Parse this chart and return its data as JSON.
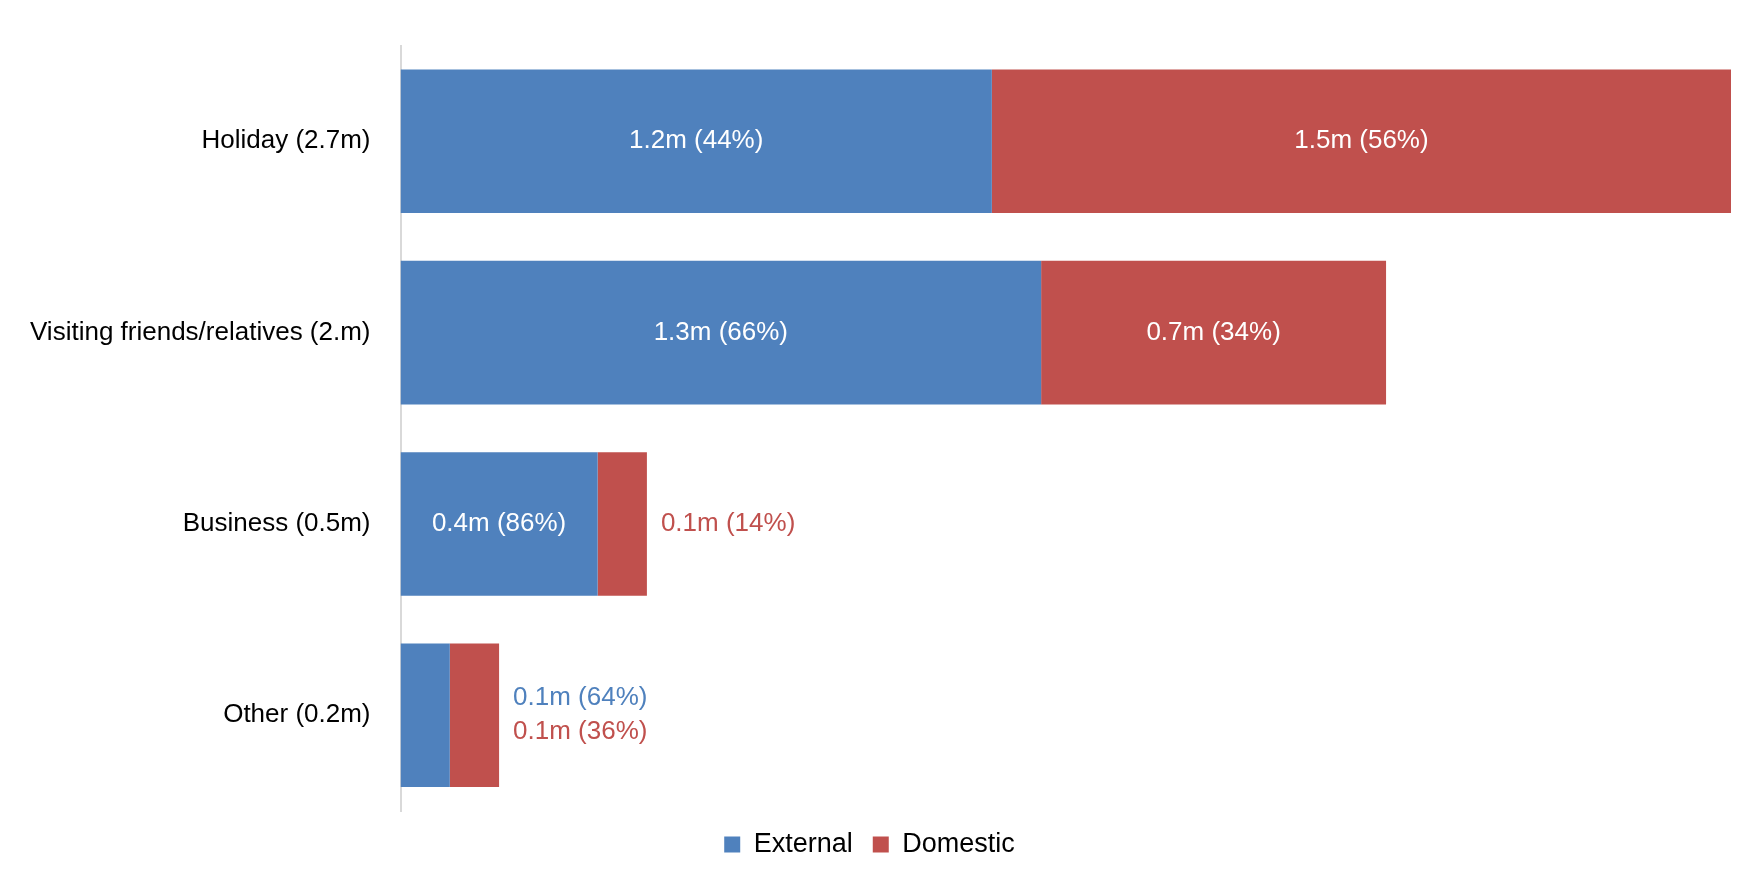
{
  "chart_data": {
    "type": "bar",
    "orientation": "horizontal",
    "stacked": true,
    "categories": [
      "Holiday (2.7m)",
      "Visiting friends/relatives (2.m)",
      "Business (0.5m)",
      "Other (0.2m)"
    ],
    "series": [
      {
        "name": "External",
        "color": "#4f81bd",
        "values": [
          1200000,
          1300000,
          400000,
          100000
        ],
        "value_labels": [
          "1.2m (44%)",
          "1.3m (66%)",
          "0.4m (86%)",
          "0.1m (64%)"
        ]
      },
      {
        "name": "Domestic",
        "color": "#c0504d",
        "values": [
          1500000,
          700000,
          100000,
          100000
        ],
        "value_labels": [
          "1.5m (56%)",
          "0.7m (34%)",
          "0.1m (14%)",
          "0.1m (36%)"
        ]
      }
    ],
    "legend": "bottom"
  }
}
